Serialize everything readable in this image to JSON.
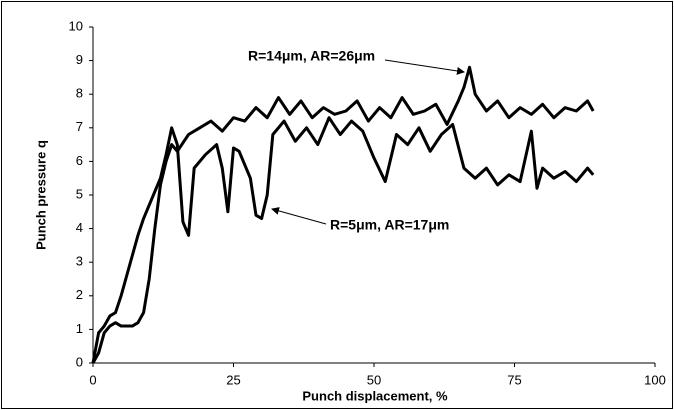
{
  "chart_data": {
    "type": "line",
    "xlabel": "Punch displacement, %",
    "ylabel": "Punch pressure q",
    "xlim": [
      0,
      100
    ],
    "xticks": [
      0,
      25,
      50,
      75,
      100
    ],
    "ylim": [
      0,
      10
    ],
    "yticks": [
      0,
      1,
      2,
      3,
      4,
      5,
      6,
      7,
      8,
      9,
      10
    ],
    "grid": false,
    "series": [
      {
        "name": "R=14μm, AR=26μm",
        "color": "#000000",
        "x": [
          0,
          1,
          2,
          3,
          4,
          5,
          6,
          7,
          8,
          9,
          10,
          11,
          12,
          13,
          14,
          15,
          17,
          19,
          21,
          23,
          25,
          27,
          29,
          31,
          33,
          35,
          37,
          39,
          41,
          43,
          45,
          47,
          49,
          51,
          53,
          55,
          57,
          59,
          61,
          63,
          65,
          66,
          67,
          68,
          70,
          72,
          74,
          76,
          78,
          80,
          82,
          84,
          86,
          88,
          89
        ],
        "values": [
          0,
          0.3,
          0.9,
          1.1,
          1.2,
          1.1,
          1.1,
          1.1,
          1.2,
          1.5,
          2.5,
          4,
          5.3,
          6,
          6.5,
          6.3,
          6.8,
          7,
          7.2,
          6.9,
          7.3,
          7.2,
          7.6,
          7.3,
          7.9,
          7.4,
          7.8,
          7.3,
          7.6,
          7.4,
          7.5,
          7.8,
          7.2,
          7.6,
          7.3,
          7.9,
          7.4,
          7.5,
          7.7,
          7.1,
          7.8,
          8.2,
          8.8,
          8.0,
          7.5,
          7.8,
          7.3,
          7.6,
          7.4,
          7.7,
          7.3,
          7.6,
          7.5,
          7.8,
          7.5
        ]
      },
      {
        "name": "R=5μm, AR=17μm",
        "color": "#000000",
        "x": [
          0,
          1,
          2,
          3,
          4,
          5,
          6,
          7,
          8,
          9,
          10,
          11,
          12,
          13,
          14,
          15,
          16,
          17,
          18,
          20,
          22,
          23,
          24,
          25,
          26,
          28,
          29,
          30,
          31,
          32,
          34,
          36,
          38,
          40,
          42,
          44,
          46,
          48,
          50,
          52,
          54,
          56,
          58,
          60,
          62,
          64,
          66,
          68,
          70,
          72,
          74,
          76,
          78,
          79,
          80,
          82,
          84,
          86,
          88,
          89
        ],
        "values": [
          0,
          0.9,
          1.1,
          1.4,
          1.5,
          2,
          2.6,
          3.2,
          3.8,
          4.3,
          4.7,
          5.1,
          5.5,
          6.2,
          7,
          6.5,
          4.2,
          3.8,
          5.8,
          6.2,
          6.5,
          5.8,
          4.5,
          6.4,
          6.3,
          5.5,
          4.4,
          4.3,
          5.0,
          6.8,
          7.2,
          6.6,
          7.0,
          6.5,
          7.3,
          6.8,
          7.2,
          6.9,
          6.1,
          5.4,
          6.8,
          6.5,
          7.0,
          6.3,
          6.8,
          7.1,
          5.8,
          5.5,
          5.8,
          5.3,
          5.6,
          5.4,
          6.9,
          5.2,
          5.8,
          5.5,
          5.7,
          5.4,
          5.8,
          5.6
        ]
      }
    ]
  }
}
